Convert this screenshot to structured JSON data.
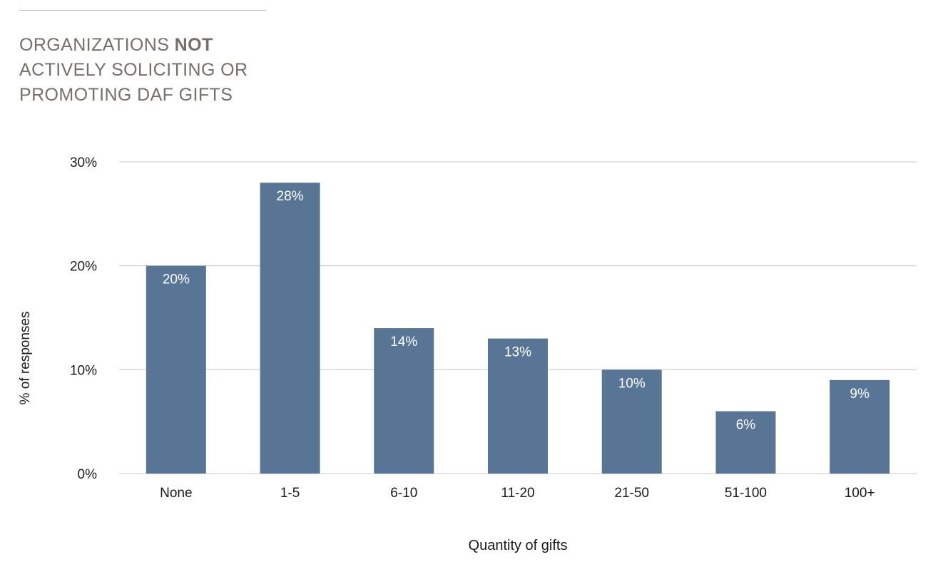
{
  "header": {
    "title_line1_pre": "ORGANIZATIONS ",
    "title_line1_em": "NOT",
    "title_line2": "ACTIVELY SOLICITING OR",
    "title_line3": "PROMOTING DAF GIFTS"
  },
  "chart_data": {
    "type": "bar",
    "title": "ORGANIZATIONS NOT ACTIVELY SOLICITING OR PROMOTING DAF GIFTS",
    "xlabel": "Quantity of gifts",
    "ylabel": "% of responses",
    "categories": [
      "None",
      "1-5",
      "6-10",
      "11-20",
      "21-50",
      "51-100",
      "100+"
    ],
    "values": [
      20,
      28,
      14,
      13,
      10,
      6,
      9
    ],
    "data_labels": [
      "20%",
      "28%",
      "14%",
      "13%",
      "10%",
      "6%",
      "9%"
    ],
    "ylim": [
      0,
      30
    ],
    "yticks": [
      0,
      10,
      20,
      30
    ],
    "ytick_labels": [
      "0%",
      "10%",
      "20%",
      "30%"
    ],
    "grid": true,
    "legend": "none",
    "colors": {
      "bar": "#587596",
      "gridline": "#c8c8c8",
      "axis_text": "#1a1a1a",
      "data_label": "#ffffff",
      "title": "#75706b"
    }
  }
}
